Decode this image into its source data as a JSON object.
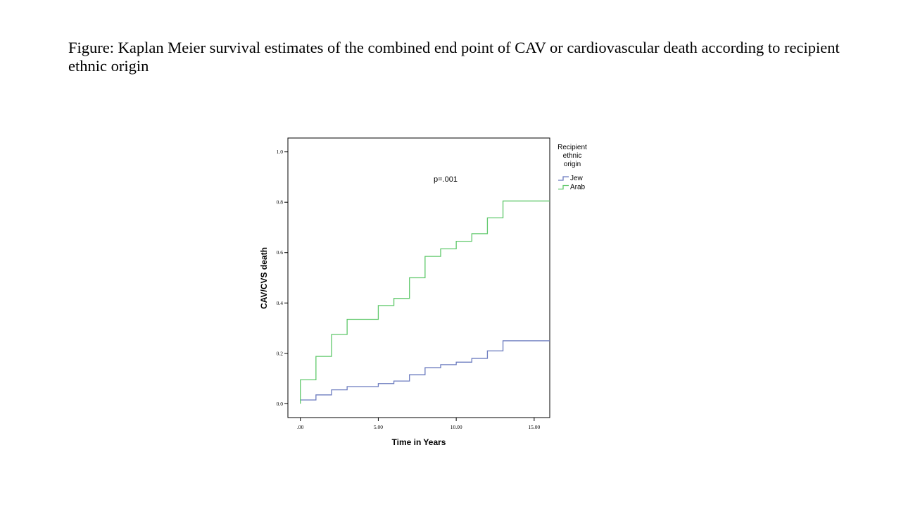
{
  "caption": "Figure: Kaplan Meier survival estimates of the combined end point of CAV or cardiovascular death according to recipient ethnic origin",
  "chart_data": {
    "type": "line",
    "step": true,
    "xlabel": "Time in Years",
    "ylabel": "CAV/CVS death",
    "xlim": [
      -0.8,
      16
    ],
    "ylim": [
      -0.055,
      1.055
    ],
    "x_ticks": [
      {
        "value": 0,
        "label": ".00"
      },
      {
        "value": 5,
        "label": "5.00"
      },
      {
        "value": 10,
        "label": "10.00"
      },
      {
        "value": 15,
        "label": "15.00"
      }
    ],
    "y_ticks": [
      {
        "value": 0.0,
        "label": "0.0"
      },
      {
        "value": 0.2,
        "label": "0.2"
      },
      {
        "value": 0.4,
        "label": "0.4"
      },
      {
        "value": 0.6,
        "label": "0.6"
      },
      {
        "value": 0.8,
        "label": "0.8"
      },
      {
        "value": 1.0,
        "label": "1.0"
      }
    ],
    "grid": false,
    "legend": {
      "title": "Recipient ethnic origin",
      "title_lines": [
        "Recipient",
        "ethnic",
        "origin"
      ],
      "position": "right-top"
    },
    "annotation": "p=.001",
    "series": [
      {
        "name": "Jew",
        "color": "#6b7bbf",
        "x": [
          0,
          1,
          2,
          3,
          5,
          6,
          7,
          8,
          9,
          10,
          11,
          12,
          13,
          16
        ],
        "y": [
          0.015,
          0.035,
          0.055,
          0.068,
          0.08,
          0.09,
          0.115,
          0.143,
          0.155,
          0.165,
          0.18,
          0.21,
          0.25,
          0.25
        ]
      },
      {
        "name": "Arab",
        "color": "#5fc86a",
        "x": [
          0,
          0,
          1,
          2,
          3,
          5,
          6,
          7,
          8,
          9,
          10,
          11,
          12,
          13,
          16
        ],
        "y": [
          0.0,
          0.095,
          0.188,
          0.275,
          0.335,
          0.39,
          0.418,
          0.5,
          0.585,
          0.615,
          0.645,
          0.675,
          0.738,
          0.805,
          0.805
        ]
      }
    ]
  }
}
